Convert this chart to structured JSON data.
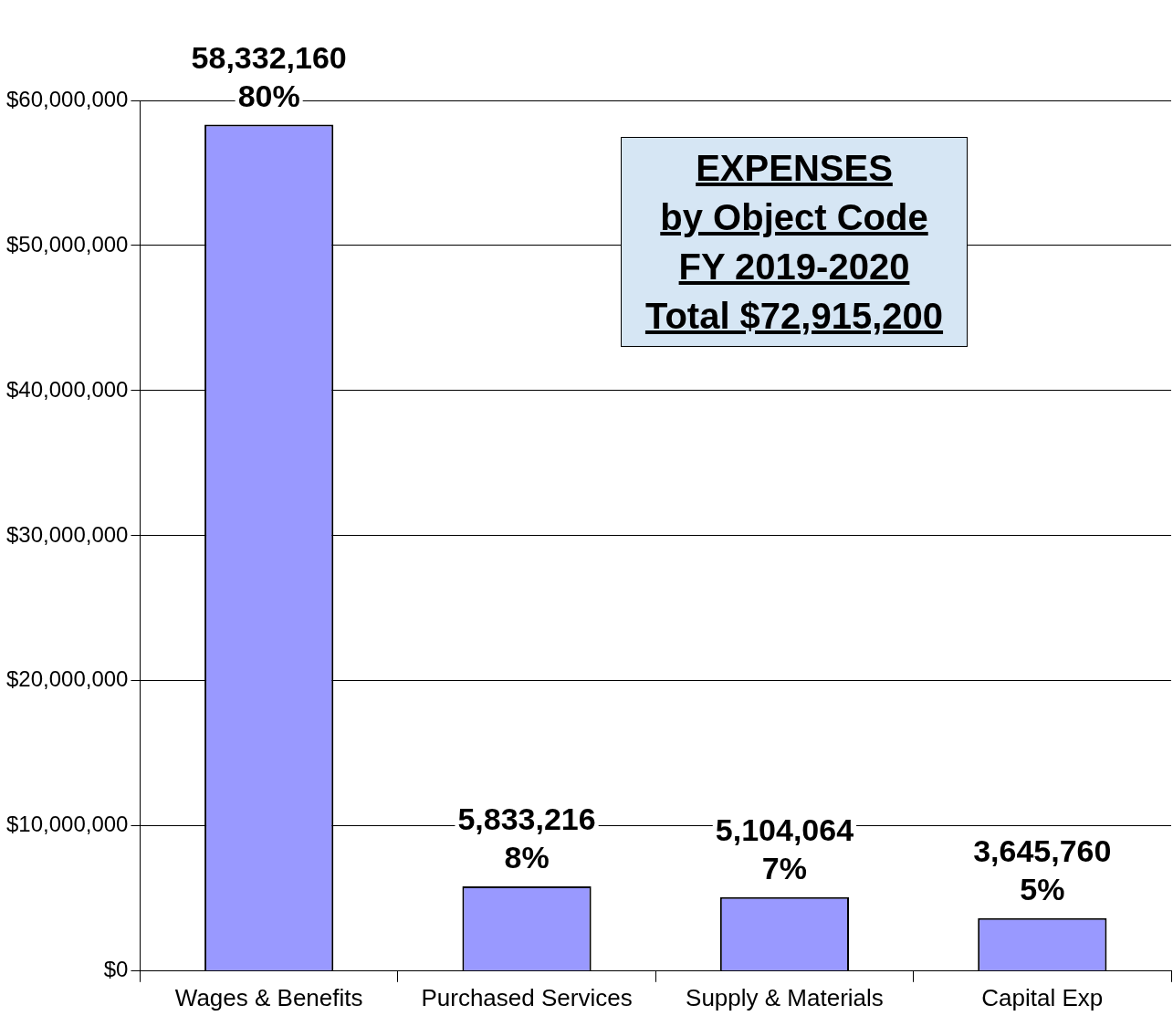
{
  "chart_data": {
    "type": "bar",
    "title": "EXPENSES\nby Object Code\nFY 2019-2020\nTotal $72,915,200",
    "categories": [
      "Wages & Benefits",
      "Purchased Services",
      "Supply & Materials",
      "Capital Exp"
    ],
    "values": [
      58332160,
      5833216,
      5104064,
      3645760
    ],
    "value_labels": [
      "58,332,160\n80%",
      "5,833,216\n8%",
      "5,104,064\n7%",
      "3,645,760\n5%"
    ],
    "color": "#9999ff",
    "ylim": [
      0,
      60000000
    ],
    "yticks": [
      {
        "value": 0,
        "label": "$0"
      },
      {
        "value": 10000000,
        "label": "$10,000,000"
      },
      {
        "value": 20000000,
        "label": "$20,000,000"
      },
      {
        "value": 30000000,
        "label": "$30,000,000"
      },
      {
        "value": 40000000,
        "label": "$40,000,000"
      },
      {
        "value": 50000000,
        "label": "$50,000,000"
      },
      {
        "value": 60000000,
        "label": "$60,000,000"
      }
    ],
    "grid": "y",
    "legend": false
  }
}
